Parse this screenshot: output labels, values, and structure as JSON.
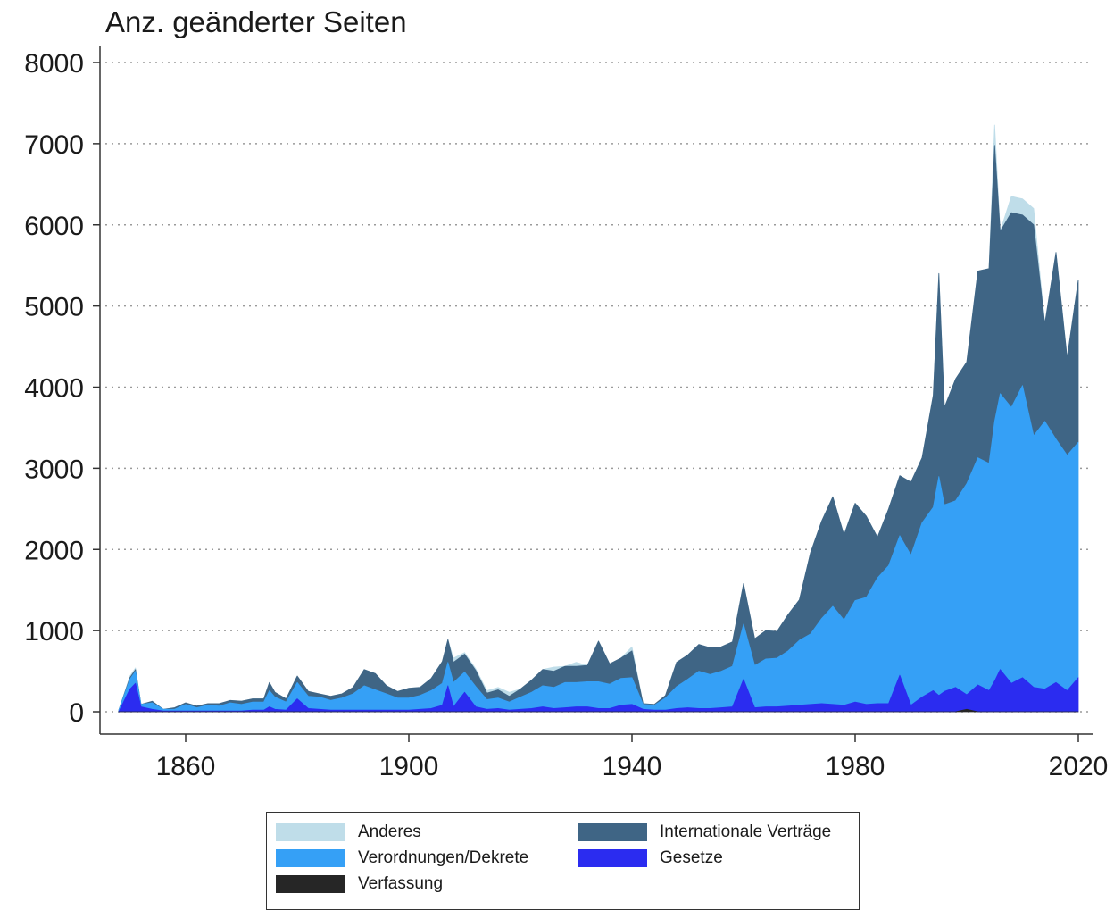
{
  "chart_data": {
    "type": "area",
    "stacked": true,
    "ylabel": "Anz. geänderter Seiten",
    "xlabel": "",
    "xlim": [
      1848,
      2020
    ],
    "ylim": [
      0,
      8000
    ],
    "yticks": [
      0,
      1000,
      2000,
      3000,
      4000,
      5000,
      6000,
      7000,
      8000
    ],
    "xticks": [
      1860,
      1900,
      1940,
      1980,
      2020
    ],
    "grid": "horizontal-dotted",
    "legend_position": "bottom",
    "x": [
      1848,
      1850,
      1851,
      1852,
      1854,
      1856,
      1858,
      1860,
      1862,
      1864,
      1866,
      1868,
      1870,
      1872,
      1874,
      1875,
      1876,
      1878,
      1880,
      1882,
      1884,
      1886,
      1888,
      1890,
      1892,
      1894,
      1896,
      1898,
      1900,
      1902,
      1904,
      1906,
      1907,
      1908,
      1910,
      1912,
      1914,
      1916,
      1918,
      1920,
      1922,
      1924,
      1926,
      1928,
      1930,
      1932,
      1934,
      1936,
      1938,
      1940,
      1942,
      1944,
      1946,
      1948,
      1950,
      1952,
      1954,
      1956,
      1958,
      1960,
      1962,
      1964,
      1966,
      1968,
      1970,
      1972,
      1974,
      1976,
      1978,
      1980,
      1982,
      1984,
      1986,
      1988,
      1990,
      1992,
      1994,
      1995,
      1996,
      1998,
      2000,
      2002,
      2004,
      2005,
      2006,
      2008,
      2010,
      2012,
      2014,
      2016,
      2018,
      2020
    ],
    "series": [
      {
        "name": "Verfassung",
        "color": "#262626",
        "values": [
          0,
          0,
          0,
          0,
          0,
          0,
          0,
          0,
          0,
          0,
          0,
          0,
          0,
          0,
          0,
          0,
          0,
          0,
          0,
          0,
          0,
          0,
          0,
          0,
          0,
          0,
          0,
          0,
          0,
          0,
          0,
          0,
          0,
          0,
          0,
          0,
          0,
          0,
          0,
          0,
          0,
          0,
          0,
          0,
          0,
          0,
          0,
          0,
          0,
          0,
          0,
          0,
          0,
          0,
          0,
          0,
          0,
          0,
          0,
          0,
          0,
          0,
          0,
          0,
          0,
          0,
          0,
          0,
          0,
          0,
          0,
          0,
          0,
          0,
          0,
          0,
          0,
          0,
          0,
          0,
          30,
          0,
          0,
          0,
          0,
          0,
          0,
          0,
          0,
          0,
          0,
          0
        ]
      },
      {
        "name": "Gesetze",
        "color": "#2b2cf0",
        "values": [
          0,
          280,
          350,
          60,
          30,
          10,
          10,
          10,
          10,
          10,
          10,
          10,
          10,
          20,
          20,
          60,
          30,
          20,
          160,
          40,
          30,
          20,
          20,
          20,
          20,
          20,
          20,
          20,
          20,
          30,
          40,
          80,
          320,
          60,
          240,
          60,
          30,
          40,
          20,
          30,
          40,
          60,
          40,
          50,
          60,
          60,
          40,
          40,
          80,
          90,
          30,
          20,
          20,
          40,
          50,
          40,
          40,
          50,
          60,
          400,
          50,
          60,
          60,
          70,
          80,
          90,
          100,
          90,
          80,
          120,
          90,
          100,
          100,
          450,
          80,
          180,
          260,
          200,
          250,
          300,
          180,
          330,
          260,
          380,
          520,
          350,
          420,
          300,
          280,
          360,
          260,
          420
        ]
      },
      {
        "name": "Verordnungen/Dekrete",
        "color": "#35a0f6",
        "values": [
          20,
          120,
          150,
          30,
          80,
          20,
          20,
          80,
          40,
          70,
          60,
          100,
          80,
          100,
          100,
          200,
          150,
          100,
          200,
          150,
          150,
          120,
          150,
          200,
          300,
          250,
          200,
          150,
          150,
          170,
          220,
          270,
          290,
          300,
          250,
          250,
          120,
          130,
          100,
          150,
          200,
          260,
          260,
          310,
          300,
          310,
          330,
          300,
          330,
          330,
          60,
          60,
          150,
          270,
          350,
          460,
          420,
          450,
          500,
          680,
          520,
          590,
          600,
          680,
          800,
          870,
          1050,
          1210,
          1050,
          1250,
          1320,
          1550,
          1700,
          1720,
          1850,
          2150,
          2260,
          2700,
          2300,
          2300,
          2600,
          2800,
          2800,
          3200,
          3400,
          3400,
          3600,
          3100,
          3300,
          3000,
          2900,
          2900
        ]
      },
      {
        "name": "Internationale Verträge",
        "color": "#3f6585",
        "values": [
          0,
          20,
          20,
          0,
          20,
          0,
          20,
          20,
          20,
          20,
          30,
          30,
          40,
          40,
          40,
          100,
          60,
          40,
          80,
          60,
          40,
          50,
          50,
          80,
          200,
          200,
          100,
          80,
          120,
          100,
          150,
          270,
          280,
          250,
          220,
          200,
          80,
          100,
          70,
          100,
          150,
          200,
          200,
          200,
          200,
          200,
          500,
          250,
          250,
          330,
          10,
          10,
          30,
          300,
          300,
          330,
          330,
          300,
          300,
          500,
          330,
          350,
          330,
          450,
          500,
          1000,
          1200,
          1350,
          1050,
          1200,
          1000,
          500,
          700,
          740,
          900,
          800,
          1380,
          2500,
          1200,
          1500,
          1500,
          2300,
          2400,
          3400,
          2000,
          2400,
          2100,
          2600,
          1200,
          2300,
          1200,
          2000
        ]
      },
      {
        "name": "Anderes",
        "color": "#bfdde9",
        "values": [
          0,
          20,
          20,
          0,
          0,
          0,
          0,
          0,
          0,
          0,
          0,
          0,
          0,
          0,
          0,
          0,
          0,
          0,
          0,
          0,
          0,
          0,
          0,
          0,
          0,
          0,
          0,
          0,
          0,
          0,
          0,
          0,
          0,
          50,
          20,
          20,
          30,
          30,
          50,
          0,
          0,
          0,
          50,
          0,
          50,
          0,
          0,
          0,
          0,
          50,
          0,
          0,
          0,
          0,
          0,
          0,
          0,
          0,
          0,
          0,
          0,
          0,
          0,
          0,
          0,
          0,
          0,
          0,
          0,
          0,
          0,
          0,
          0,
          0,
          0,
          0,
          0,
          0,
          0,
          0,
          0,
          0,
          0,
          250,
          0,
          200,
          200,
          200,
          0,
          0,
          0,
          0
        ]
      }
    ]
  },
  "legend": {
    "items": [
      {
        "label": "Anderes",
        "color": "#bfdde9"
      },
      {
        "label": "Internationale Verträge",
        "color": "#3f6585"
      },
      {
        "label": "Verordnungen/Dekrete",
        "color": "#35a0f6"
      },
      {
        "label": "Gesetze",
        "color": "#2b2cf0"
      },
      {
        "label": "Verfassung",
        "color": "#262626"
      }
    ]
  }
}
